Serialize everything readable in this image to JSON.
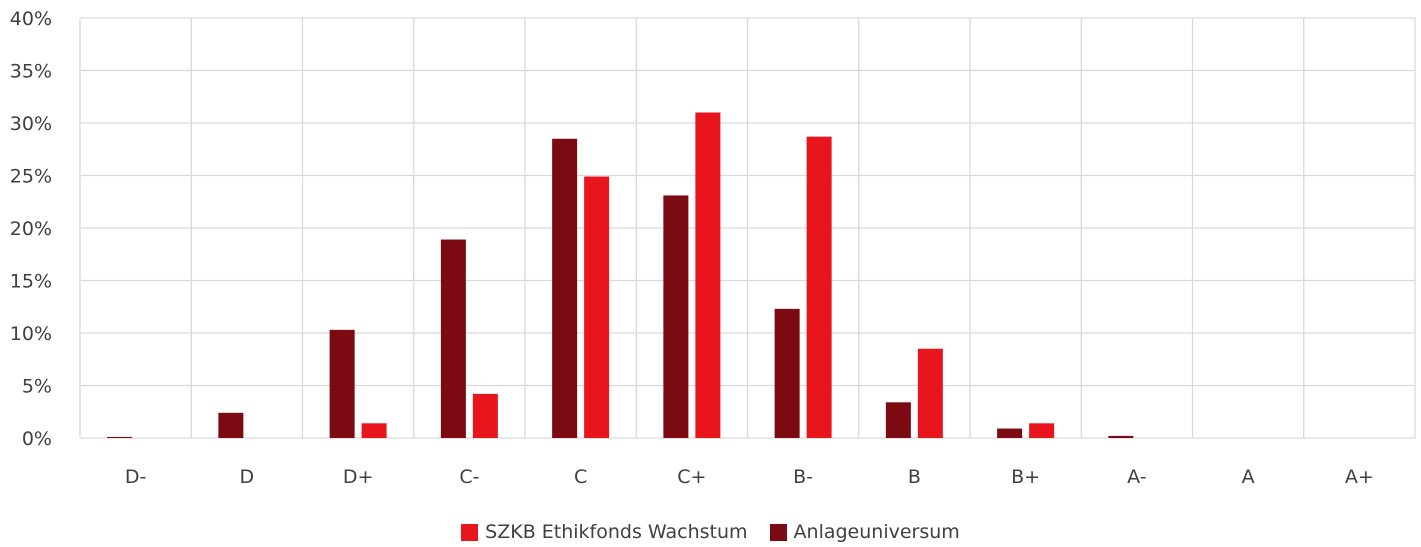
{
  "chart_data": {
    "type": "bar",
    "categories": [
      "D-",
      "D",
      "D+",
      "C-",
      "C",
      "C+",
      "B-",
      "B",
      "B+",
      "A-",
      "A",
      "A+"
    ],
    "series": [
      {
        "name": "Anlageuniversum",
        "color": "#7b0a12",
        "values": [
          0.1,
          2.4,
          10.3,
          18.9,
          28.5,
          23.1,
          12.3,
          3.4,
          0.9,
          0.2,
          0.0,
          0.0
        ]
      },
      {
        "name": "SZKB Ethikfonds Wachstum",
        "color": "#e8161c",
        "values": [
          0.0,
          0.0,
          1.4,
          4.2,
          24.9,
          31.0,
          28.7,
          8.5,
          1.4,
          0.0,
          0.0,
          0.0
        ]
      }
    ],
    "ylim": [
      0,
      40
    ],
    "yticks": [
      0,
      5,
      10,
      15,
      20,
      25,
      30,
      35,
      40
    ],
    "ytick_labels": [
      "0%",
      "5%",
      "10%",
      "15%",
      "20%",
      "25%",
      "30%",
      "35%",
      "40%"
    ],
    "grid": true,
    "legend_position": "bottom",
    "legend_order": [
      "SZKB Ethikfonds Wachstum",
      "Anlageuniversum"
    ]
  }
}
